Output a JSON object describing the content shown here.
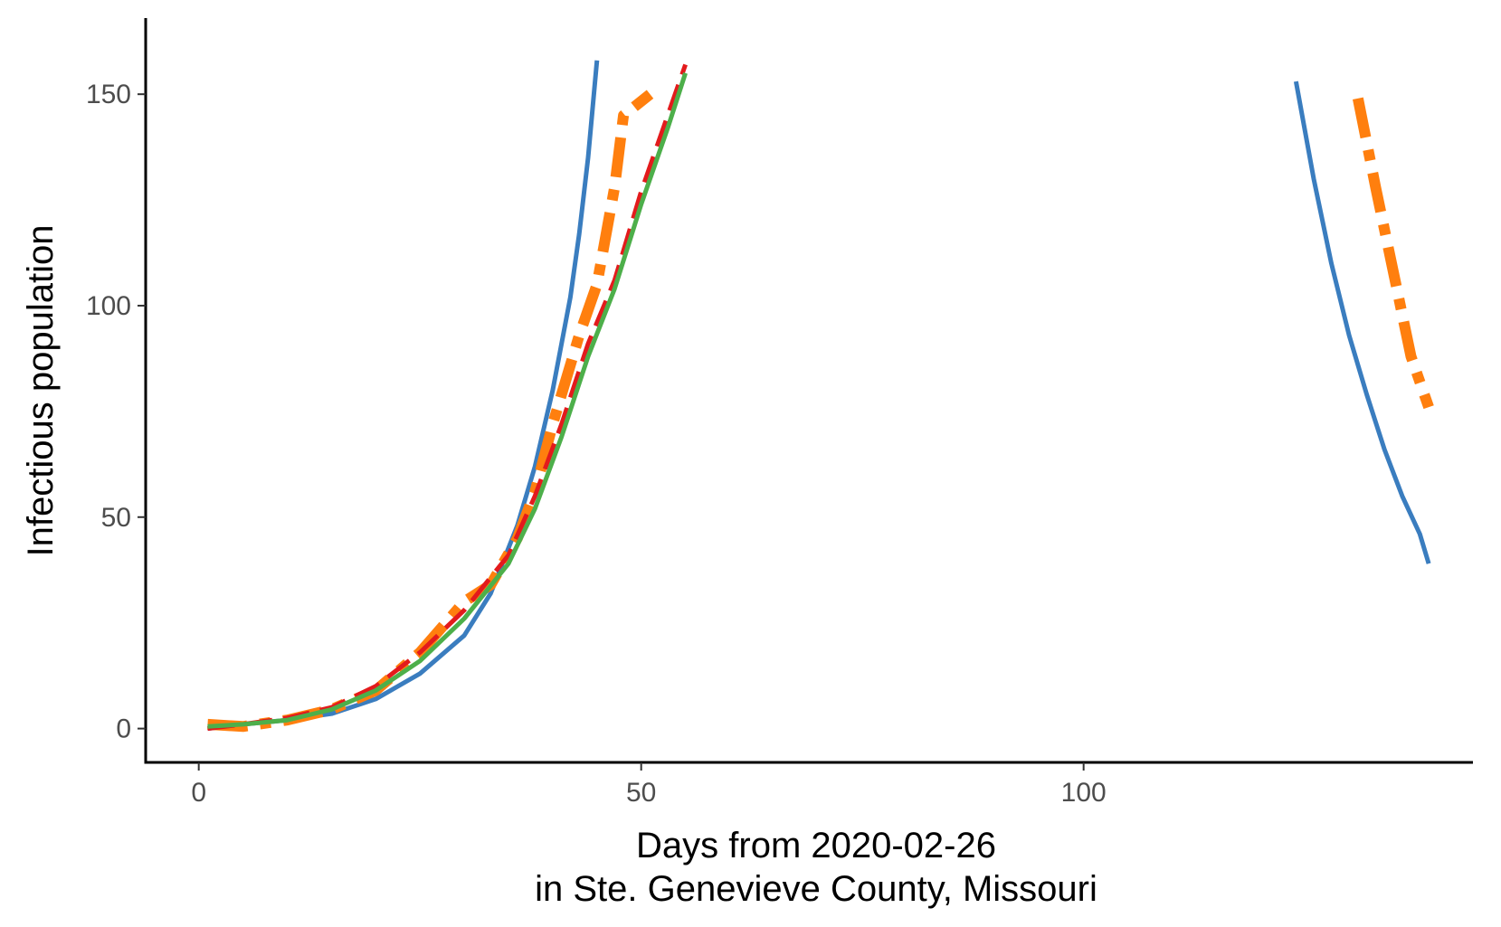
{
  "chart_data": {
    "type": "line",
    "title": "",
    "xlabel_lines": [
      "Days from 2020-02-26",
      "in Ste. Genevieve County, Missouri"
    ],
    "ylabel": "Infectious population",
    "xlim": [
      -6,
      144
    ],
    "ylim": [
      -8,
      168
    ],
    "x_ticks": [
      0,
      50,
      100
    ],
    "x_tick_labels": [
      "0",
      "50",
      "100"
    ],
    "y_ticks": [
      0,
      50,
      100,
      150
    ],
    "y_tick_labels": [
      "0",
      "50",
      "100",
      "150"
    ],
    "grid": false,
    "legend": "none",
    "series": [
      {
        "color": "#3a7dbf",
        "dash": "solid",
        "width": 5,
        "segments": [
          [
            [
              1,
              0
            ],
            [
              5,
              1
            ],
            [
              10,
              2
            ],
            [
              15,
              3.5
            ],
            [
              20,
              7
            ],
            [
              25,
              13
            ],
            [
              30,
              22
            ],
            [
              33,
              32
            ],
            [
              36,
              48
            ],
            [
              38,
              62
            ],
            [
              40,
              80
            ],
            [
              42,
              102
            ],
            [
              43,
              117
            ],
            [
              44,
              135
            ],
            [
              45,
              158
            ]
          ],
          [
            [
              124,
              153
            ],
            [
              126,
              130
            ],
            [
              128,
              110
            ],
            [
              130,
              93
            ],
            [
              132,
              79
            ],
            [
              134,
              66
            ],
            [
              136,
              55
            ],
            [
              138,
              46
            ],
            [
              139,
              39
            ]
          ]
        ]
      },
      {
        "color": "#ff7f0e",
        "dash": "dashdot",
        "width": 12,
        "segments": [
          [
            [
              1,
              1
            ],
            [
              5,
              0.5
            ],
            [
              10,
              2
            ],
            [
              15,
              4.5
            ],
            [
              20,
              9
            ],
            [
              25,
              18
            ],
            [
              30,
              30
            ],
            [
              33,
              34
            ],
            [
              36,
              45
            ],
            [
              38,
              56
            ],
            [
              40,
              72
            ],
            [
              43,
              93
            ],
            [
              45,
              105
            ],
            [
              47,
              128
            ],
            [
              48,
              145
            ],
            [
              51,
              150
            ]
          ],
          [
            [
              131,
              149
            ],
            [
              133,
              128
            ],
            [
              135,
              108
            ],
            [
              137,
              88
            ],
            [
              139,
              76
            ]
          ]
        ]
      },
      {
        "color": "#e31a1c",
        "dash": "dashed",
        "width": 5,
        "segments": [
          [
            [
              1,
              0
            ],
            [
              5,
              1
            ],
            [
              10,
              2.5
            ],
            [
              15,
              5
            ],
            [
              20,
              10
            ],
            [
              25,
              18
            ],
            [
              30,
              28
            ],
            [
              35,
              41
            ],
            [
              38,
              55
            ],
            [
              41,
              72
            ],
            [
              44,
              91
            ],
            [
              47,
              106
            ],
            [
              50,
              127
            ],
            [
              53,
              145
            ],
            [
              55,
              157
            ]
          ]
        ]
      },
      {
        "color": "#4daf4a",
        "dash": "solid",
        "width": 5,
        "segments": [
          [
            [
              1,
              0.5
            ],
            [
              5,
              1
            ],
            [
              10,
              2
            ],
            [
              15,
              4.5
            ],
            [
              20,
              9
            ],
            [
              25,
              16
            ],
            [
              30,
              26
            ],
            [
              35,
              39
            ],
            [
              38,
              52
            ],
            [
              41,
              69
            ],
            [
              44,
              88
            ],
            [
              47,
              104
            ],
            [
              50,
              124
            ],
            [
              53,
              142
            ],
            [
              55,
              155
            ]
          ]
        ]
      }
    ]
  }
}
